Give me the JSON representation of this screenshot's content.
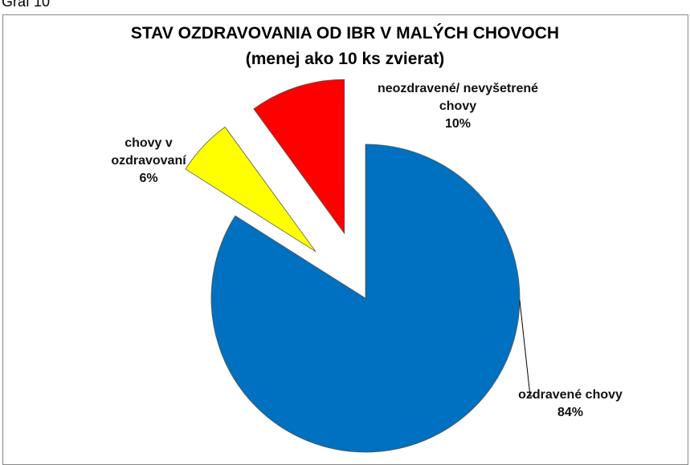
{
  "caption": "Graf 10",
  "chart_data": {
    "type": "pie",
    "title": "STAV OZDRAVOVANIA OD IBR V MALÝCH CHOVOCH",
    "subtitle": "(menej ako 10 ks zvierat)",
    "categories": [
      "ozdravené chovy",
      "chovy v ozdravovaní",
      "neozdravené/ nevyšetrené chovy"
    ],
    "values": [
      84,
      6,
      10
    ],
    "value_labels": [
      "84%",
      "6%",
      "10%"
    ],
    "colors": [
      "#0070c0",
      "#ffff00",
      "#ff0000"
    ],
    "exploded": [
      false,
      true,
      true
    ]
  }
}
